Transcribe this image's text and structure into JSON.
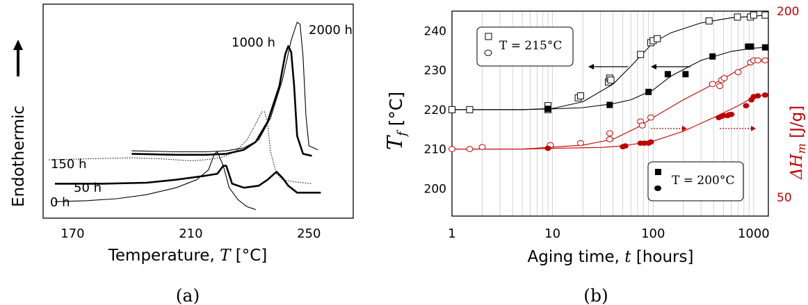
{
  "chart_data": [
    {
      "panel_label": "(a)",
      "type": "line",
      "xlabel": "Temperature, ",
      "xlabel_symbol": "T",
      "xlabel_unit": " [°C]",
      "ylabel": "Endothermic",
      "xlim": [
        160,
        265
      ],
      "xticks": [
        "170",
        "210",
        "250"
      ],
      "xtick_values": [
        170,
        210,
        250
      ],
      "series": [
        {
          "name": "0 h",
          "style": "thin",
          "x": [
            164,
            175,
            185,
            195,
            205,
            212,
            216,
            218,
            219,
            221,
            223,
            226,
            229,
            232
          ],
          "y": [
            0.02,
            0.025,
            0.035,
            0.055,
            0.09,
            0.13,
            0.18,
            0.26,
            0.27,
            0.2,
            0.09,
            0.03,
            -0.005,
            -0.02
          ]
        },
        {
          "name": "50 h",
          "style": "thick",
          "x": [
            164,
            180,
            195,
            205,
            215,
            219,
            221,
            222,
            224,
            228,
            233,
            236,
            239,
            241,
            243,
            246,
            250,
            254
          ],
          "y": [
            0.11,
            0.11,
            0.115,
            0.13,
            0.15,
            0.16,
            0.2,
            0.2,
            0.11,
            0.09,
            0.1,
            0.13,
            0.17,
            0.14,
            0.1,
            0.065,
            0.065,
            0.065
          ]
        },
        {
          "name": "150 h",
          "style": "dotted",
          "x": [
            162,
            175,
            190,
            200,
            210,
            215,
            220,
            225,
            229,
            232,
            234,
            235,
            236,
            237,
            239,
            241,
            245,
            251
          ],
          "y": [
            0.23,
            0.235,
            0.24,
            0.235,
            0.225,
            0.23,
            0.24,
            0.27,
            0.33,
            0.41,
            0.47,
            0.47,
            0.41,
            0.27,
            0.16,
            0.13,
            0.12,
            0.11
          ]
        },
        {
          "name": "1000 h",
          "style": "thick",
          "x": [
            190,
            205,
            215,
            222,
            228,
            232,
            236,
            240,
            242,
            243,
            244,
            245,
            246,
            248,
            251
          ],
          "y": [
            0.26,
            0.255,
            0.255,
            0.26,
            0.28,
            0.32,
            0.42,
            0.6,
            0.76,
            0.8,
            0.77,
            0.6,
            0.35,
            0.26,
            0.25
          ]
        },
        {
          "name": "2000 h",
          "style": "thin",
          "x": [
            190,
            205,
            215,
            222,
            228,
            233,
            237,
            241,
            244,
            246,
            247,
            248,
            249,
            250,
            253
          ],
          "y": [
            0.275,
            0.27,
            0.27,
            0.275,
            0.29,
            0.33,
            0.44,
            0.63,
            0.83,
            0.92,
            0.91,
            0.75,
            0.45,
            0.3,
            0.28
          ]
        }
      ],
      "annotations": [
        "0 h",
        "50 h",
        "150 h",
        "1000 h",
        "2000 h"
      ]
    },
    {
      "panel_label": "(b)",
      "type": "scatter",
      "xlabel": "Aging time, ",
      "xlabel_symbol": "t",
      "xlabel_unit": " [hours]",
      "xscale": "log",
      "xlim": [
        1,
        1400
      ],
      "xticks": [
        "1",
        "10",
        "100",
        "1000"
      ],
      "xtick_values": [
        1,
        10,
        100,
        1000
      ],
      "ylabel_left_symbol": "T",
      "ylabel_left_sub": "f",
      "ylabel_left_unit": " [°C]",
      "ylim_left": [
        193,
        245
      ],
      "yticks_left": [
        "200",
        "210",
        "220",
        "230",
        "240"
      ],
      "ylabel_right": "ΔH",
      "ylabel_right_sub": "m",
      "ylabel_right_unit": " [J/g]",
      "yticks_right": [
        "50",
        "200"
      ],
      "legend_215": {
        "label": "T = 215°C",
        "placement": "top-left"
      },
      "legend_200": {
        "label": "T = 200°C",
        "placement": "bottom-right"
      },
      "series": [
        {
          "marker": "open-square",
          "axis": "left",
          "temperature": "215°C",
          "x": [
            1,
            1.5,
            9,
            9,
            18,
            19,
            36,
            37,
            38,
            75,
            95,
            100,
            110,
            360,
            690,
            930,
            1000,
            1300
          ],
          "y": [
            220,
            220,
            221,
            220,
            223,
            223.5,
            227,
            228,
            227.5,
            234,
            237,
            237.5,
            238,
            242.5,
            243.5,
            243.5,
            244,
            244
          ],
          "fit_x": [
            1,
            5,
            10,
            20,
            40,
            60,
            100,
            150,
            300,
            600,
            1000,
            1300
          ],
          "fit_y": [
            220,
            220,
            220.3,
            222,
            226.5,
            231,
            237,
            239.5,
            242,
            243.3,
            243.7,
            244
          ]
        },
        {
          "marker": "filled-square",
          "axis": "left",
          "temperature": "200°C",
          "x": [
            9,
            37,
            90,
            140,
            210,
            390,
            880,
            940,
            1300
          ],
          "y": [
            220.2,
            221.2,
            224.5,
            229,
            229,
            233.5,
            236,
            236,
            235.8
          ],
          "fit_x": [
            1,
            5,
            10,
            20,
            40,
            60,
            100,
            150,
            300,
            600,
            1000,
            1300
          ],
          "fit_y": [
            220,
            220,
            220.2,
            220.5,
            221.5,
            222.5,
            225,
            228.5,
            232.5,
            234.8,
            235.6,
            235.8
          ]
        },
        {
          "marker": "open-circle",
          "axis": "right",
          "temperature": "215°C",
          "x": [
            1,
            1.5,
            2,
            9.5,
            19,
            37,
            37,
            75,
            78,
            95,
            390,
            460,
            480,
            510,
            700,
            930,
            1000,
            1100,
            1300
          ],
          "y": [
            210,
            210,
            210.5,
            211,
            211.5,
            214,
            212.5,
            217,
            216,
            218,
            226.5,
            226,
            227.5,
            228,
            229.5,
            232,
            232.5,
            232.5,
            232.5
          ],
          "fit_x": [
            1,
            5,
            10,
            20,
            40,
            70,
            100,
            200,
            400,
            700,
            1000,
            1300
          ],
          "fit_y": [
            210,
            210,
            210.5,
            211,
            212.5,
            215.5,
            218,
            222.5,
            226.5,
            230,
            232,
            232.5
          ]
        },
        {
          "marker": "filled-circle",
          "axis": "right",
          "temperature": "200°C",
          "x": [
            9,
            50,
            53,
            75,
            82,
            90,
            95,
            450,
            480,
            500,
            550,
            570,
            600,
            840,
            950,
            1000,
            1100,
            1300
          ],
          "y": [
            210.2,
            210.6,
            210.8,
            211.5,
            211.5,
            211.5,
            211.8,
            218,
            218.3,
            218.5,
            218.5,
            218.7,
            218.8,
            221,
            222.5,
            223.3,
            223.5,
            223.7
          ],
          "fit_x": [
            1,
            5,
            10,
            30,
            50,
            100,
            200,
            400,
            700,
            1000,
            1300
          ],
          "fit_y": [
            210,
            210,
            210.2,
            210.4,
            210.8,
            212,
            214.5,
            218,
            221,
            223.2,
            223.7
          ]
        }
      ]
    }
  ],
  "colors": {
    "red": "#c00000",
    "black": "#000000",
    "grid": "#c8c8c8"
  }
}
